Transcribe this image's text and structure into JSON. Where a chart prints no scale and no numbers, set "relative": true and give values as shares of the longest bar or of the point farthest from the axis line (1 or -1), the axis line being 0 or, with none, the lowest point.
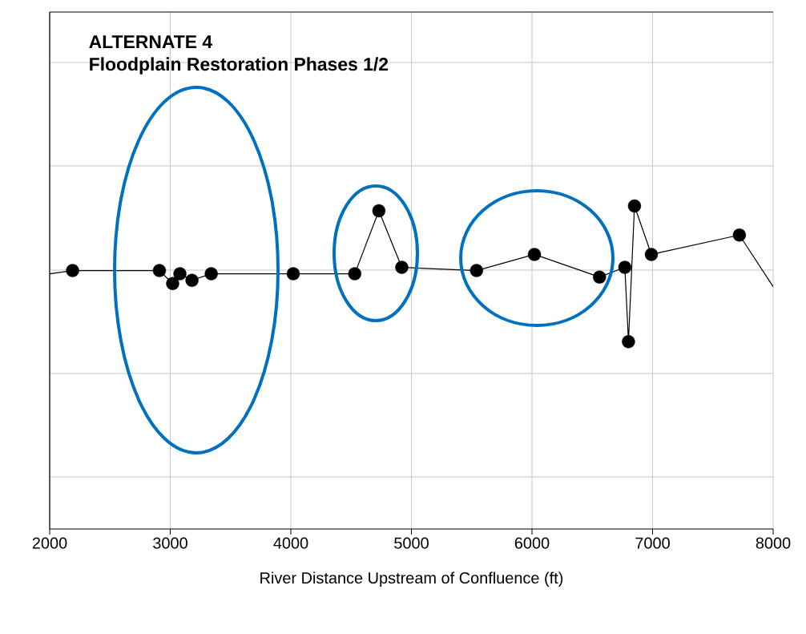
{
  "chart_data": {
    "type": "line",
    "title": "ALTERNATE 4",
    "subtitle": "Floodplain Restoration Phases 1/2",
    "xlabel": "River Distance Upstream of Confluence (ft)",
    "relative": true,
    "xlim": [
      2000,
      8000
    ],
    "xticks": [
      2000,
      3000,
      4000,
      5000,
      6000,
      7000,
      8000
    ],
    "grid": true,
    "series": [
      {
        "color": "#000000",
        "marker": "none",
        "x": [
          2000,
          2190,
          2910,
          3020,
          3080,
          3180,
          3340,
          4020,
          4530,
          4730,
          4920,
          5540,
          6020,
          6560,
          6770,
          6800,
          6850,
          6990,
          7720,
          8000
        ],
        "values": [
          0.79,
          0.8,
          0.8,
          0.76,
          0.79,
          0.77,
          0.79,
          0.79,
          0.79,
          0.985,
          0.81,
          0.8,
          0.85,
          0.78,
          0.81,
          0.58,
          1.0,
          0.85,
          0.91,
          0.75
        ]
      },
      {
        "type": "scatter",
        "color": "#000000",
        "marker": "circle",
        "x": [
          2190,
          2910,
          3020,
          3080,
          3180,
          3340,
          4020,
          4530,
          4730,
          4920,
          5540,
          6020,
          6560,
          6770,
          6800,
          6850,
          6990,
          7720
        ],
        "values": [
          0.8,
          0.8,
          0.76,
          0.79,
          0.77,
          0.79,
          0.79,
          0.79,
          0.985,
          0.81,
          0.8,
          0.85,
          0.78,
          0.81,
          0.58,
          1.0,
          0.85,
          0.91
        ]
      }
    ]
  }
}
